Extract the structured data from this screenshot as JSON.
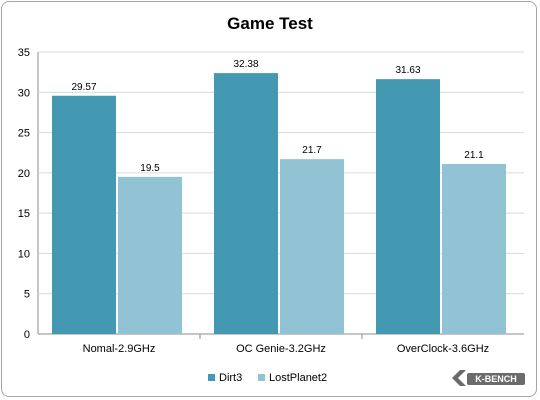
{
  "chart_data": {
    "type": "bar",
    "title": "Game Test",
    "categories": [
      "Nomal-2.9GHz",
      "OC Genie-3.2GHz",
      "OverClock-3.6GHz"
    ],
    "series": [
      {
        "name": "Dirt3",
        "values": [
          29.57,
          32.38,
          31.63
        ],
        "labels": [
          "29.57",
          "32.38",
          "31.63"
        ],
        "color": "#4299b1"
      },
      {
        "name": "LostPlanet2",
        "values": [
          19.5,
          21.7,
          21.1
        ],
        "labels": [
          "19.5",
          "21.7",
          "21.1"
        ],
        "color": "#92c3d5"
      }
    ],
    "ylim": [
      0,
      35
    ],
    "yticks": [
      "0",
      "5",
      "10",
      "15",
      "20",
      "25",
      "30",
      "35"
    ],
    "grid": true,
    "legend_position": "bottom"
  },
  "watermark": {
    "text": "K-BENCH"
  }
}
